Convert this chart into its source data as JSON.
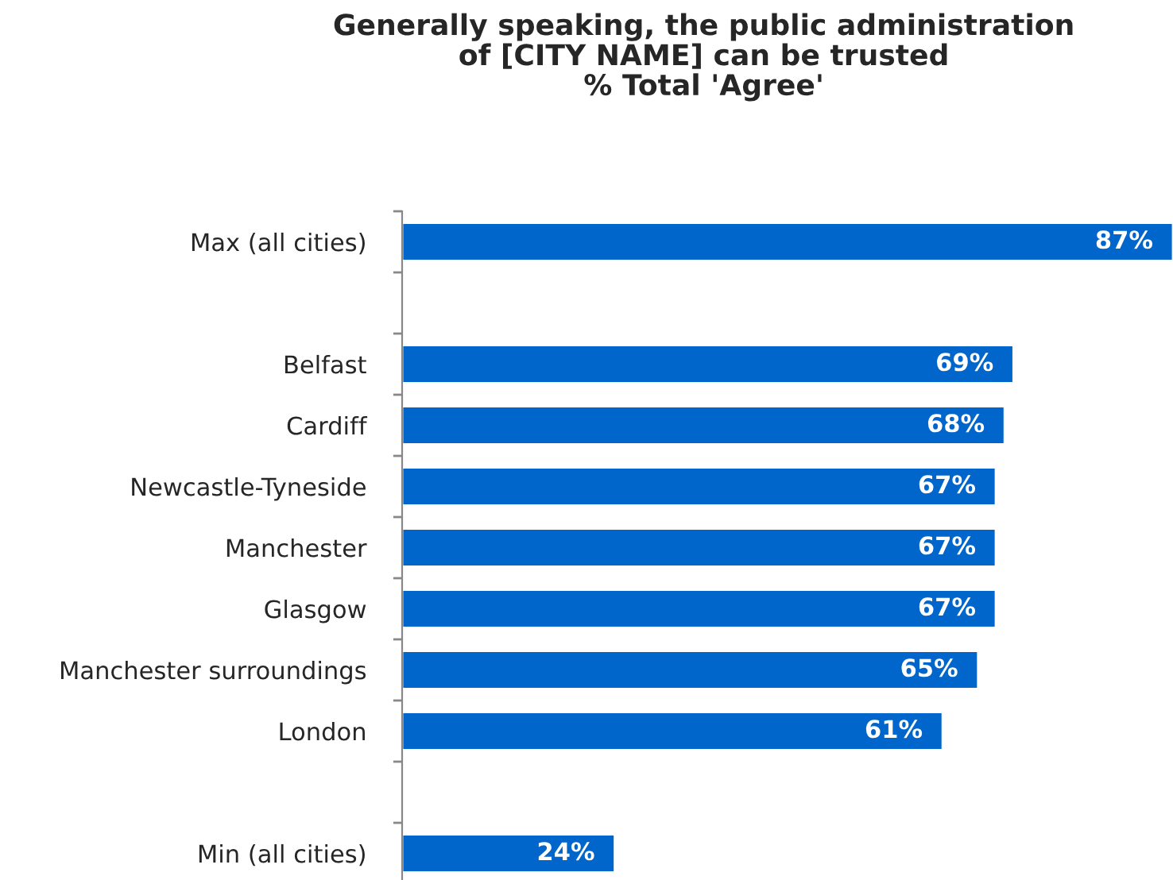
{
  "chart_data": {
    "type": "bar",
    "orientation": "horizontal",
    "title": "Generally speaking, the public administration\nof [CITY NAME] can be trusted\n% Total 'Agree'",
    "categories": [
      "Max (all cities)",
      null,
      "Belfast",
      "Cardiff",
      "Newcastle-Tyneside",
      "Manchester",
      "Glasgow",
      "Manchester surroundings",
      "London",
      null,
      "Min (all cities)"
    ],
    "values": [
      87,
      null,
      69,
      68,
      67,
      67,
      67,
      65,
      61,
      null,
      24
    ],
    "value_labels": [
      "87%",
      null,
      "69%",
      "68%",
      "67%",
      "67%",
      "67%",
      "65%",
      "61%",
      null,
      "24%"
    ],
    "color": "#0066cc",
    "grid": false,
    "legend": false
  }
}
